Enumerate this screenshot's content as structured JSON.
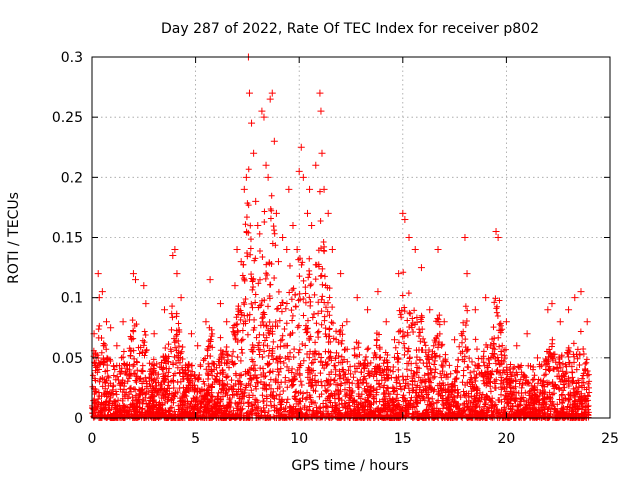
{
  "chart_data": {
    "type": "scatter",
    "title": "Day 287 of 2022, Rate Of TEC Index for receiver p802",
    "xlabel": "GPS time / hours",
    "ylabel": "ROTI / TECUs",
    "xlim": [
      0,
      25
    ],
    "ylim": [
      0,
      0.3
    ],
    "xticks": [
      "0",
      "5",
      "10",
      "15",
      "20",
      "25"
    ],
    "yticks": [
      "0",
      "0.05",
      "0.1",
      "0.15",
      "0.2",
      "0.25",
      "0.3"
    ],
    "grid": true,
    "marker": "+",
    "color": "#ff0000",
    "series": [
      {
        "points": [
          [
            0.1,
            0.07
          ],
          [
            0.2,
            0.05
          ],
          [
            0.3,
            0.12
          ],
          [
            0.35,
            0.1
          ],
          [
            0.5,
            0.105
          ],
          [
            0.7,
            0.08
          ],
          [
            0.9,
            0.075
          ],
          [
            1.2,
            0.06
          ],
          [
            1.5,
            0.08
          ],
          [
            2.0,
            0.12
          ],
          [
            2.1,
            0.115
          ],
          [
            2.5,
            0.11
          ],
          [
            2.6,
            0.095
          ],
          [
            3.0,
            0.07
          ],
          [
            3.5,
            0.09
          ],
          [
            3.9,
            0.135
          ],
          [
            4.0,
            0.14
          ],
          [
            4.1,
            0.12
          ],
          [
            4.3,
            0.1
          ],
          [
            4.8,
            0.07
          ],
          [
            5.1,
            0.06
          ],
          [
            5.5,
            0.08
          ],
          [
            5.7,
            0.115
          ],
          [
            6.2,
            0.095
          ],
          [
            6.5,
            0.08
          ],
          [
            6.8,
            0.075
          ],
          [
            6.9,
            0.11
          ],
          [
            7.0,
            0.14
          ],
          [
            7.2,
            0.13
          ],
          [
            7.35,
            0.19
          ],
          [
            7.45,
            0.2
          ],
          [
            7.55,
            0.3
          ],
          [
            7.6,
            0.27
          ],
          [
            7.7,
            0.245
          ],
          [
            7.8,
            0.22
          ],
          [
            7.9,
            0.18
          ],
          [
            8.0,
            0.16
          ],
          [
            8.2,
            0.255
          ],
          [
            8.3,
            0.25
          ],
          [
            8.4,
            0.21
          ],
          [
            8.5,
            0.2
          ],
          [
            8.6,
            0.265
          ],
          [
            8.7,
            0.27
          ],
          [
            8.8,
            0.23
          ],
          [
            8.9,
            0.17
          ],
          [
            9.0,
            0.13
          ],
          [
            9.2,
            0.15
          ],
          [
            9.4,
            0.14
          ],
          [
            9.5,
            0.19
          ],
          [
            9.7,
            0.16
          ],
          [
            9.9,
            0.14
          ],
          [
            10.0,
            0.205
          ],
          [
            10.1,
            0.225
          ],
          [
            10.2,
            0.2
          ],
          [
            10.4,
            0.17
          ],
          [
            10.5,
            0.19
          ],
          [
            10.6,
            0.16
          ],
          [
            10.8,
            0.21
          ],
          [
            11.0,
            0.27
          ],
          [
            11.05,
            0.255
          ],
          [
            11.1,
            0.22
          ],
          [
            11.2,
            0.19
          ],
          [
            11.4,
            0.17
          ],
          [
            11.6,
            0.14
          ],
          [
            12.0,
            0.12
          ],
          [
            12.3,
            0.08
          ],
          [
            12.8,
            0.1
          ],
          [
            13.3,
            0.09
          ],
          [
            13.8,
            0.105
          ],
          [
            14.2,
            0.08
          ],
          [
            14.6,
            0.065
          ],
          [
            14.8,
            0.12
          ],
          [
            15.0,
            0.17
          ],
          [
            15.1,
            0.165
          ],
          [
            15.3,
            0.15
          ],
          [
            15.6,
            0.14
          ],
          [
            15.9,
            0.125
          ],
          [
            16.3,
            0.09
          ],
          [
            16.7,
            0.14
          ],
          [
            17.0,
            0.08
          ],
          [
            17.5,
            0.065
          ],
          [
            18.0,
            0.15
          ],
          [
            18.1,
            0.12
          ],
          [
            18.5,
            0.09
          ],
          [
            19.0,
            0.1
          ],
          [
            19.5,
            0.155
          ],
          [
            19.6,
            0.15
          ],
          [
            20.0,
            0.08
          ],
          [
            20.5,
            0.06
          ],
          [
            21.0,
            0.07
          ],
          [
            21.5,
            0.05
          ],
          [
            22.0,
            0.09
          ],
          [
            22.2,
            0.095
          ],
          [
            22.6,
            0.08
          ],
          [
            23.0,
            0.09
          ],
          [
            23.3,
            0.1
          ],
          [
            23.6,
            0.105
          ],
          [
            23.9,
            0.08
          ]
        ]
      }
    ]
  }
}
